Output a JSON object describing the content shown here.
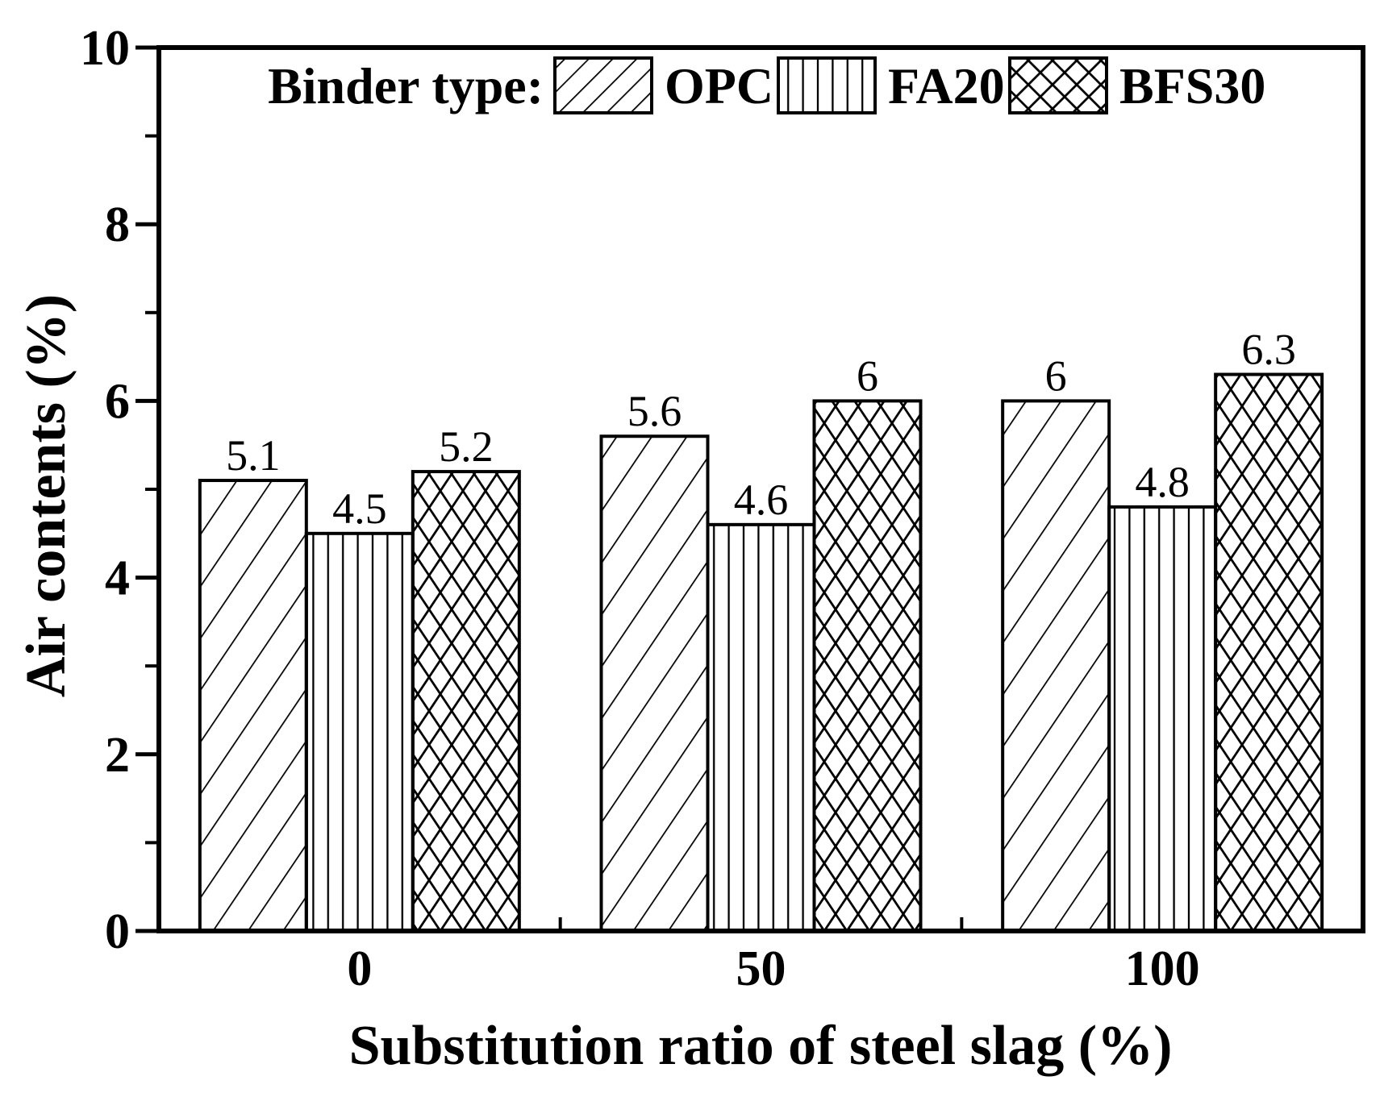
{
  "colors": {
    "ink": "#000000",
    "background": "#ffffff"
  },
  "chart_data": {
    "type": "bar",
    "title": "",
    "xlabel": "Substitution ratio of steel slag (%)",
    "ylabel": "Air contents (%)",
    "ylim": [
      0,
      10
    ],
    "yticks_major": [
      0,
      2,
      4,
      6,
      8,
      10
    ],
    "yticks_minor": [
      1,
      3,
      5,
      7,
      9
    ],
    "categories": [
      "0",
      "50",
      "100"
    ],
    "grid": false,
    "value_labels_shown": true,
    "legend": {
      "title": "Binder type:",
      "position": "top-inside"
    },
    "series": [
      {
        "name": "OPC",
        "hatch": "diagonal-lines",
        "values": [
          5.1,
          5.6,
          6
        ]
      },
      {
        "name": "FA20",
        "hatch": "vertical-lines",
        "values": [
          4.5,
          4.6,
          4.8
        ]
      },
      {
        "name": "BFS30",
        "hatch": "diamond-crosshatch",
        "values": [
          5.2,
          6,
          6.3
        ]
      }
    ]
  }
}
